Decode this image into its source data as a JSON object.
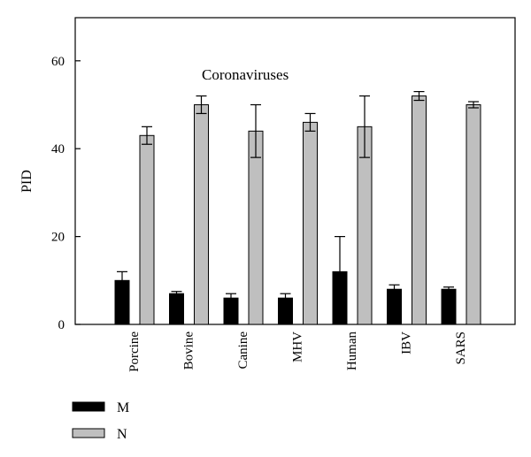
{
  "chart_data": {
    "type": "bar",
    "title": "",
    "annotation": "Coronaviruses",
    "xlabel": "",
    "ylabel": "PID",
    "ylim": [
      0,
      70
    ],
    "yticks": [
      0,
      20,
      40,
      60
    ],
    "grid": false,
    "legend_position": "bottom-left",
    "categories": [
      "Porcine",
      "Bovine",
      "Canine",
      "MHV",
      "Human",
      "IBV",
      "SARS"
    ],
    "series": [
      {
        "name": "M",
        "color": "#000000",
        "values": [
          10,
          7,
          6,
          6,
          12,
          8,
          8
        ],
        "errors": [
          2,
          0.5,
          1,
          1,
          8,
          1,
          0.5
        ]
      },
      {
        "name": "N",
        "color": "#bfbfbf",
        "values": [
          43,
          50,
          44,
          46,
          45,
          52,
          50
        ],
        "errors": [
          2,
          2,
          6,
          2,
          7,
          1,
          0.7
        ]
      }
    ]
  }
}
